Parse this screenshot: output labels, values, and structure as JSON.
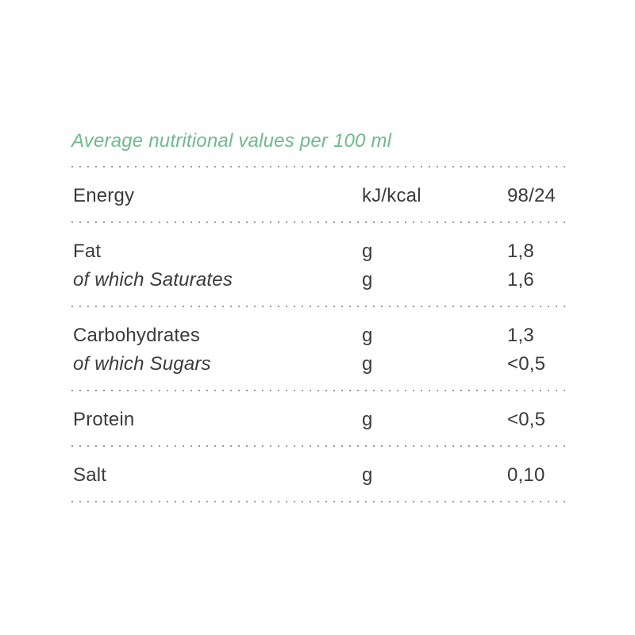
{
  "header": {
    "title": "Average nutritional values per 100 ml"
  },
  "table": {
    "groups": [
      {
        "rows": [
          {
            "label": "Energy",
            "unit": "kJ/kcal",
            "value": "98/24"
          }
        ]
      },
      {
        "rows": [
          {
            "label": "Fat",
            "unit": "g",
            "value": "1,8"
          },
          {
            "label": "of which Saturates",
            "unit": "g",
            "value": "1,6"
          }
        ]
      },
      {
        "rows": [
          {
            "label": "Carbohydrates",
            "unit": "g",
            "value": "1,3"
          },
          {
            "label": "of which Sugars",
            "unit": "g",
            "value": "<0,5"
          }
        ]
      },
      {
        "rows": [
          {
            "label": "Protein",
            "unit": "g",
            "value": "<0,5"
          }
        ]
      },
      {
        "rows": [
          {
            "label": "Salt",
            "unit": "g",
            "value": "0,10"
          }
        ]
      }
    ]
  },
  "colors": {
    "heading_green": "#6fba8b",
    "text": "#3b3b3b",
    "dot_gray": "#9a9a9a",
    "background": "#ffffff"
  }
}
